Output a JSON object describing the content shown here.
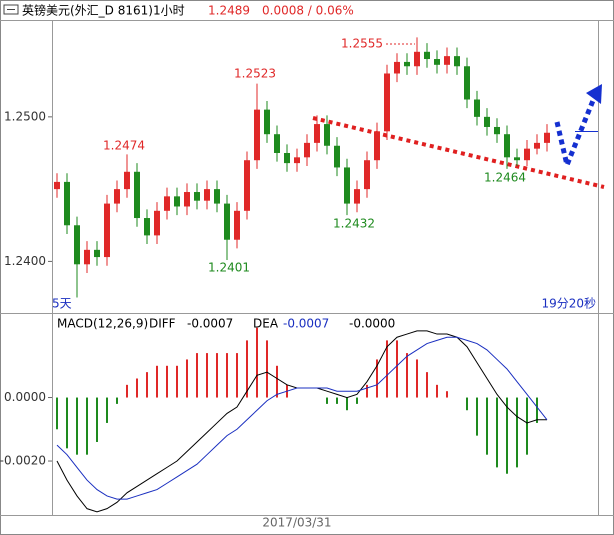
{
  "header": {
    "symbol": "英镑美元(外汇_D 8161)1小时",
    "last": "1.2489",
    "change": "0.0008 / 0.06%"
  },
  "date_label": "2017/03/31",
  "corner_left": "5天",
  "corner_right": "19分20秒",
  "chart_data": [
    {
      "type": "candlestick",
      "up_color": "#e02828",
      "down_color": "#1e8a1e",
      "ylim": [
        1.2365,
        1.2567
      ],
      "yticks": [
        {
          "value": 1.25,
          "label": "1.2500"
        },
        {
          "value": 1.24,
          "label": "1.2400"
        }
      ],
      "open": [
        1.245,
        1.2455,
        1.2425,
        1.2398,
        1.2408,
        1.2403,
        1.244,
        1.245,
        1.2462,
        1.243,
        1.2418,
        1.2435,
        1.2445,
        1.2438,
        1.2448,
        1.2442,
        1.245,
        1.244,
        1.2415,
        1.2435,
        1.247,
        1.2505,
        1.2488,
        1.2475,
        1.2468,
        1.2472,
        1.2482,
        1.2495,
        1.248,
        1.2465,
        1.244,
        1.245,
        1.247,
        1.249,
        1.253,
        1.2538,
        1.2535,
        1.2545,
        1.254,
        1.2536,
        1.2542,
        1.2535,
        1.2512,
        1.25,
        1.2493,
        1.2488,
        1.2472,
        1.247,
        1.2478,
        1.2482
      ],
      "high": [
        1.2461,
        1.2461,
        1.2431,
        1.2414,
        1.2414,
        1.2446,
        1.2456,
        1.2474,
        1.2468,
        1.2436,
        1.2441,
        1.2451,
        1.2451,
        1.2454,
        1.2454,
        1.2456,
        1.2456,
        1.2446,
        1.2441,
        1.2476,
        1.2523,
        1.2511,
        1.2494,
        1.2481,
        1.2478,
        1.2488,
        1.2501,
        1.2501,
        1.2486,
        1.2471,
        1.2456,
        1.2476,
        1.2496,
        1.2536,
        1.2544,
        1.2544,
        1.2555,
        1.2551,
        1.2546,
        1.2548,
        1.2548,
        1.2541,
        1.2518,
        1.2506,
        1.2499,
        1.2494,
        1.2478,
        1.2484,
        1.2488,
        1.2495
      ],
      "low": [
        1.2444,
        1.2419,
        1.2375,
        1.2392,
        1.2397,
        1.2397,
        1.2434,
        1.2444,
        1.2424,
        1.2412,
        1.2412,
        1.2429,
        1.2432,
        1.2432,
        1.2436,
        1.2436,
        1.2434,
        1.2401,
        1.2409,
        1.2429,
        1.2464,
        1.2482,
        1.2469,
        1.2462,
        1.2462,
        1.2466,
        1.2476,
        1.2474,
        1.2459,
        1.2432,
        1.2434,
        1.2444,
        1.2464,
        1.2484,
        1.2524,
        1.2529,
        1.2529,
        1.2534,
        1.253,
        1.253,
        1.2529,
        1.2506,
        1.2494,
        1.2487,
        1.2482,
        1.2464,
        1.2466,
        1.2466,
        1.2474,
        1.2476
      ],
      "close": [
        1.2455,
        1.2425,
        1.2398,
        1.2408,
        1.2403,
        1.244,
        1.245,
        1.2462,
        1.243,
        1.2418,
        1.2435,
        1.2445,
        1.2438,
        1.2448,
        1.2442,
        1.245,
        1.244,
        1.2415,
        1.2435,
        1.247,
        1.2505,
        1.2488,
        1.2475,
        1.2468,
        1.2472,
        1.2482,
        1.2495,
        1.248,
        1.2465,
        1.244,
        1.245,
        1.247,
        1.249,
        1.253,
        1.2538,
        1.2535,
        1.2545,
        1.254,
        1.2536,
        1.2542,
        1.2535,
        1.2512,
        1.25,
        1.2493,
        1.2488,
        1.2472,
        1.247,
        1.2478,
        1.2482,
        1.2489
      ],
      "annotations": [
        {
          "text": "1.2555",
          "color": "#e02828"
        },
        {
          "text": "1.2523",
          "color": "#e02828"
        },
        {
          "text": "1.2474",
          "color": "#e02828"
        },
        {
          "text": "1.2432",
          "color": "#1e8a1e"
        },
        {
          "text": "1.2401",
          "color": "#1e8a1e"
        },
        {
          "text": "1.2464",
          "color": "#1e8a1e"
        }
      ]
    },
    {
      "type": "macd",
      "ylim": [
        -0.0037,
        0.0026
      ],
      "yticks": [
        {
          "value": 0,
          "label": "0.0000"
        },
        {
          "value": -0.002,
          "label": "-0.0020"
        }
      ],
      "series": [
        {
          "name": "MACD(12,26,9)",
          "readout": "-0.0000",
          "up_color": "#e02828",
          "down_color": "#1e8a1e",
          "values": [
            -0.001,
            -0.0016,
            -0.0018,
            -0.0018,
            -0.0014,
            -0.0008,
            -0.0002,
            0.0004,
            0.0006,
            0.0008,
            0.001,
            0.001,
            0.001,
            0.0012,
            0.0014,
            0.0014,
            0.0014,
            0.0014,
            0.0014,
            0.0018,
            0.0022,
            0.0018,
            0.001,
            0.0004,
            0,
            0,
            0,
            -0.0002,
            -0.0002,
            -0.0004,
            -0.0002,
            0.0004,
            0.0012,
            0.0018,
            0.0018,
            0.0014,
            0.0012,
            0.0008,
            0.0004,
            0.0002,
            0,
            -0.0004,
            -0.0012,
            -0.0018,
            -0.0022,
            -0.0024,
            -0.0022,
            -0.0018,
            -0.0008,
            0
          ]
        },
        {
          "name": "DIFF",
          "readout": "-0.0007",
          "color": "#000000",
          "values": [
            -0.002,
            -0.0026,
            -0.0031,
            -0.0035,
            -0.0036,
            -0.0035,
            -0.0033,
            -0.003,
            -0.0028,
            -0.0026,
            -0.0024,
            -0.0022,
            -0.002,
            -0.0017,
            -0.0014,
            -0.0011,
            -0.0008,
            -0.0005,
            -0.0003,
            0.0002,
            0.0007,
            0.0008,
            0.0006,
            0.0004,
            0.0003,
            0.0003,
            0.0003,
            0.0002,
            0.0001,
            0,
            0.0001,
            0.0005,
            0.001,
            0.0016,
            0.0019,
            0.002,
            0.0021,
            0.0021,
            0.002,
            0.002,
            0.0019,
            0.0016,
            0.0011,
            0.0006,
            0.0001,
            -0.0003,
            -0.0006,
            -0.0008,
            -0.0007,
            -0.0007
          ]
        },
        {
          "name": "DEA",
          "readout": "-0.0007",
          "color": "#1a2fc0",
          "values": [
            -0.0015,
            -0.0018,
            -0.0022,
            -0.0026,
            -0.0029,
            -0.0031,
            -0.0032,
            -0.0032,
            -0.0031,
            -0.003,
            -0.0029,
            -0.0027,
            -0.0025,
            -0.0023,
            -0.0021,
            -0.0018,
            -0.0015,
            -0.0012,
            -0.001,
            -0.0007,
            -0.0004,
            -0.0001,
            0.0001,
            0.0002,
            0.0003,
            0.0003,
            0.0003,
            0.0003,
            0.0002,
            0.0002,
            0.0002,
            0.0003,
            0.0004,
            0.0007,
            0.001,
            0.0013,
            0.0015,
            0.0017,
            0.0018,
            0.0019,
            0.0019,
            0.0018,
            0.0017,
            0.0015,
            0.0012,
            0.0009,
            0.0005,
            0.0001,
            -0.0003,
            -0.0007
          ]
        }
      ]
    }
  ]
}
